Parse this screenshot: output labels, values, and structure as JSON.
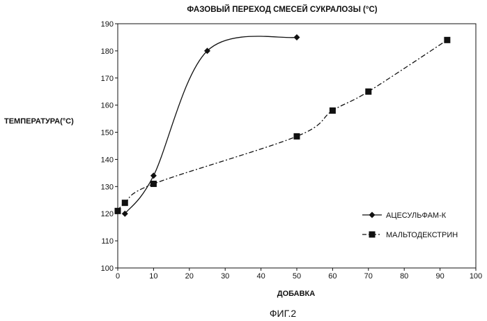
{
  "chart_data": {
    "type": "line",
    "title": "ФАЗОВЫЙ ПЕРЕХОД СМЕСЕЙ СУКРАЛОЗЫ  (°С)",
    "xlabel": "ДОБАВКА",
    "ylabel": "ТЕМПЕРАТУРА(°С)",
    "xlim": [
      0,
      100
    ],
    "ylim": [
      100,
      190
    ],
    "x_ticks": [
      0,
      10,
      20,
      30,
      40,
      50,
      60,
      70,
      80,
      90,
      100
    ],
    "y_ticks": [
      100,
      110,
      120,
      130,
      140,
      150,
      160,
      170,
      180,
      190
    ],
    "grid": false,
    "legend_position": "bottom-right",
    "series": [
      {
        "name": "АЦЕСУЛЬФАМ-К",
        "marker": "diamond",
        "line": "solid",
        "x": [
          2,
          10,
          25,
          50
        ],
        "y": [
          120,
          134,
          180,
          185
        ]
      },
      {
        "name": "МАЛЬТОДЕКСТРИН",
        "marker": "square",
        "line": "dash-dot",
        "x": [
          0,
          2,
          10,
          50,
          60,
          70,
          92
        ],
        "y": [
          121,
          124,
          131,
          148.5,
          158,
          165,
          184
        ]
      }
    ]
  },
  "caption": "ФИГ.2"
}
